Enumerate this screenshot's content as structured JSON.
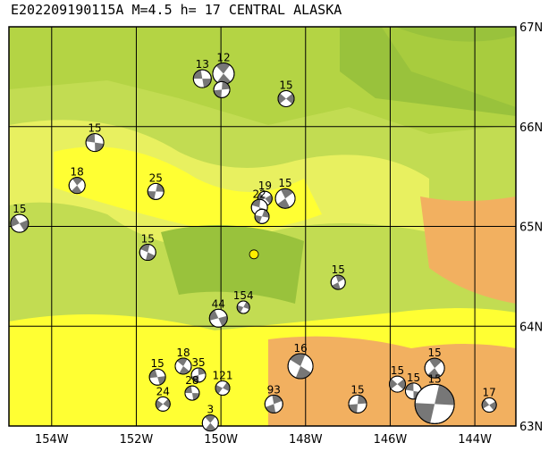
{
  "map": {
    "title": "E202209190115A M=4.5 h= 17 CENTRAL ALASKA",
    "lonlim": [
      -155.01,
      -143.03
    ],
    "latlim": [
      63,
      67
    ],
    "lat_ticks": [
      {
        "value": 63,
        "label": "63N"
      },
      {
        "value": 64,
        "label": "64N"
      },
      {
        "value": 65,
        "label": "65N"
      },
      {
        "value": 66,
        "label": "66N"
      },
      {
        "value": 67,
        "label": "67N"
      }
    ],
    "lon_ticks": [
      {
        "value": -154,
        "label": "154W"
      },
      {
        "value": -152,
        "label": "152W"
      },
      {
        "value": -150,
        "label": "150W"
      },
      {
        "value": -148,
        "label": "148W"
      },
      {
        "value": -146,
        "label": "146W"
      },
      {
        "value": -144,
        "label": "144W"
      }
    ],
    "epicenter": {
      "lon": -149.22,
      "lat": 64.72,
      "color": "#ffee00"
    },
    "events": [
      {
        "lon": -150.44,
        "lat": 66.48,
        "depth": "13",
        "size": 10
      },
      {
        "lon": -149.94,
        "lat": 66.53,
        "depth": "12",
        "size": 12
      },
      {
        "lon": -149.98,
        "lat": 66.37,
        "depth": null,
        "size": 9
      },
      {
        "lon": -148.46,
        "lat": 66.28,
        "depth": "15",
        "size": 9
      },
      {
        "lon": -152.98,
        "lat": 65.84,
        "depth": "15",
        "size": 10
      },
      {
        "lon": -153.4,
        "lat": 65.41,
        "depth": "18",
        "size": 9
      },
      {
        "lon": -151.54,
        "lat": 65.35,
        "depth": "25",
        "size": 9
      },
      {
        "lon": -148.96,
        "lat": 65.28,
        "depth": "19",
        "size": 8
      },
      {
        "lon": -149.09,
        "lat": 65.19,
        "depth": "22",
        "size": 9
      },
      {
        "lon": -148.48,
        "lat": 65.28,
        "depth": "15",
        "size": 11
      },
      {
        "lon": -149.03,
        "lat": 65.1,
        "depth": null,
        "size": 8
      },
      {
        "lon": -154.76,
        "lat": 65.03,
        "depth": "15",
        "size": 10
      },
      {
        "lon": -151.73,
        "lat": 64.74,
        "depth": "15",
        "size": 9
      },
      {
        "lon": -147.23,
        "lat": 64.44,
        "depth": "15",
        "size": 8
      },
      {
        "lon": -149.47,
        "lat": 64.19,
        "depth": "154",
        "size": 7
      },
      {
        "lon": -150.06,
        "lat": 64.08,
        "depth": "44",
        "size": 10
      },
      {
        "lon": -148.12,
        "lat": 63.6,
        "depth": "16",
        "size": 14
      },
      {
        "lon": -148.75,
        "lat": 63.22,
        "depth": "93",
        "size": 10
      },
      {
        "lon": -149.96,
        "lat": 63.38,
        "depth": "121",
        "size": 8
      },
      {
        "lon": -151.5,
        "lat": 63.49,
        "depth": "15",
        "size": 9
      },
      {
        "lon": -150.89,
        "lat": 63.6,
        "depth": "18",
        "size": 9
      },
      {
        "lon": -150.53,
        "lat": 63.51,
        "depth": "35",
        "size": 8
      },
      {
        "lon": -151.37,
        "lat": 63.22,
        "depth": "24",
        "size": 8
      },
      {
        "lon": -150.68,
        "lat": 63.33,
        "depth": "28",
        "size": 8
      },
      {
        "lon": -150.25,
        "lat": 63.03,
        "depth": "3",
        "size": 9
      },
      {
        "lon": -146.77,
        "lat": 63.22,
        "depth": "15",
        "size": 10
      },
      {
        "lon": -145.83,
        "lat": 63.42,
        "depth": "15",
        "size": 9
      },
      {
        "lon": -145.45,
        "lat": 63.35,
        "depth": "15",
        "size": 9
      },
      {
        "lon": -144.95,
        "lat": 63.58,
        "depth": "15",
        "size": 11
      },
      {
        "lon": -144.95,
        "lat": 63.22,
        "depth": "15",
        "size": 22
      },
      {
        "lon": -143.66,
        "lat": 63.21,
        "depth": "17",
        "size": 8
      }
    ]
  }
}
